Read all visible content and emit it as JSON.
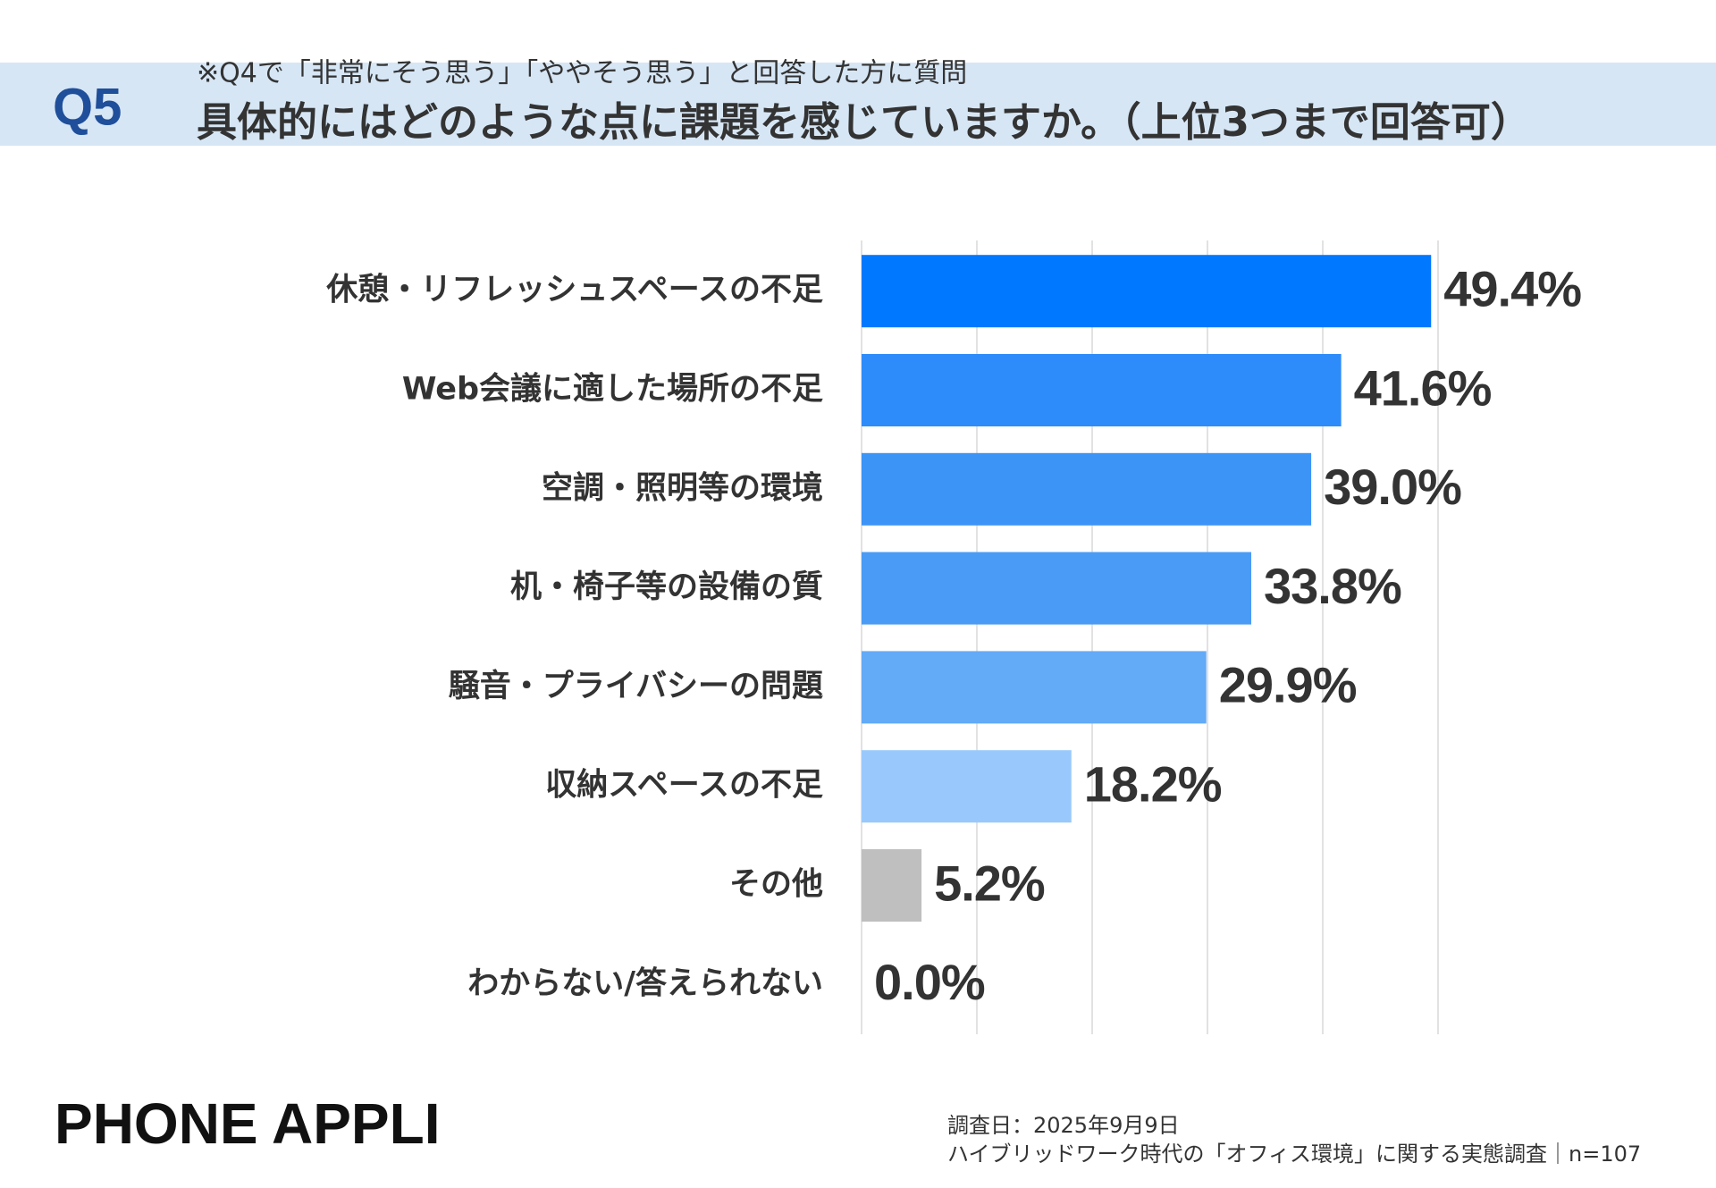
{
  "header": {
    "badge": "Q5"
  },
  "chart_data": {
    "type": "bar",
    "orientation": "horizontal",
    "subtitle": "※Q4で「非常にそう思う」「ややそう思う」と回答した方に質問",
    "title": "具体的にはどのような点に課題を感じていますか。（上位3つまで回答可）",
    "categories": [
      "休憩・リフレッシュスペースの不足",
      "Web会議に適した場所の不足",
      "空調・照明等の環境",
      "机・椅子等の設備の質",
      "騒音・プライバシーの問題",
      "収納スペースの不足",
      "その他",
      "わからない/答えられない"
    ],
    "values": [
      49.4,
      41.6,
      39.0,
      33.8,
      29.9,
      18.2,
      5.2,
      0.0
    ],
    "value_labels": [
      "49.4%",
      "41.6%",
      "39.0%",
      "33.8%",
      "29.9%",
      "18.2%",
      "5.2%",
      "0.0%"
    ],
    "colors": [
      "#0078ff",
      "#2e8cfa",
      "#3d94f7",
      "#4a9bf5",
      "#63aaf7",
      "#99c9fc",
      "#bfbfbf",
      "#bfbfbf"
    ],
    "xlim": [
      0,
      50
    ],
    "xticks": [
      0,
      10,
      20,
      30,
      40,
      50
    ],
    "grid": true
  },
  "footer": {
    "logo": "PHONE APPLI",
    "survey_date": "調査日：2025年9月9日",
    "source": "ハイブリッドワーク時代の「オフィス環境」に関する実態調査｜n=107"
  }
}
